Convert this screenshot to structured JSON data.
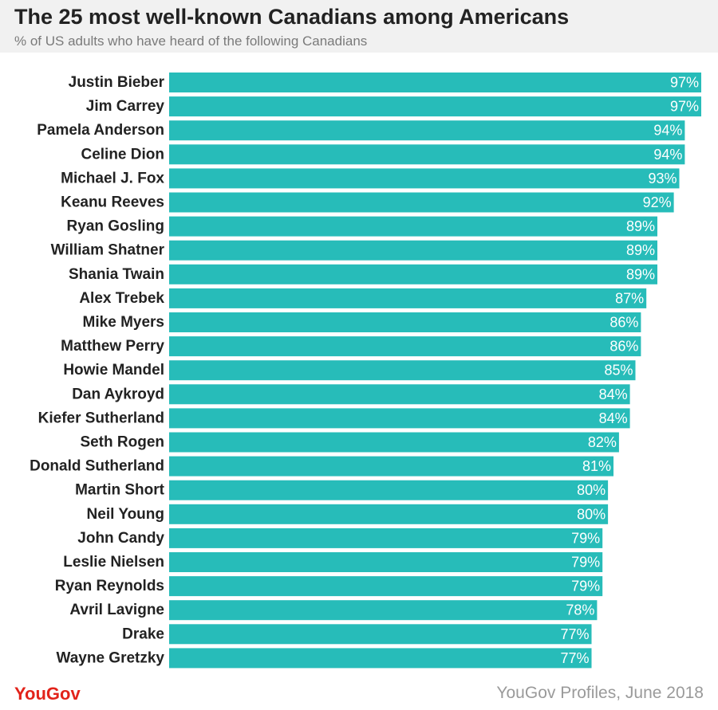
{
  "title": "The 25 most well-known Canadians among Americans",
  "subtitle": "% of US adults who have heard of the following Canadians",
  "footer": {
    "brand": "YouGov",
    "source": "YouGov Profiles, June 2018"
  },
  "colors": {
    "bar": "#27bcb9",
    "brand": "#e2231a",
    "header_bg": "#f1f1f1"
  },
  "chart_data": {
    "type": "bar",
    "orientation": "horizontal",
    "categories": [
      "Justin Bieber",
      "Jim Carrey",
      "Pamela Anderson",
      "Celine Dion",
      "Michael J. Fox",
      "Keanu Reeves",
      "Ryan Gosling",
      "William Shatner",
      "Shania Twain",
      "Alex Trebek",
      "Mike Myers",
      "Matthew Perry",
      "Howie Mandel",
      "Dan Aykroyd",
      "Kiefer Sutherland",
      "Seth Rogen",
      "Donald Sutherland",
      "Martin Short",
      "Neil Young",
      "John Candy",
      "Leslie Nielsen",
      "Ryan Reynolds",
      "Avril Lavigne",
      "Drake",
      "Wayne Gretzky"
    ],
    "values": [
      97,
      97,
      94,
      94,
      93,
      92,
      89,
      89,
      89,
      87,
      86,
      86,
      85,
      84,
      84,
      82,
      81,
      80,
      80,
      79,
      79,
      79,
      78,
      77,
      77
    ],
    "value_suffix": "%",
    "xlim": [
      0,
      97
    ],
    "grid": false,
    "legend": "none"
  }
}
